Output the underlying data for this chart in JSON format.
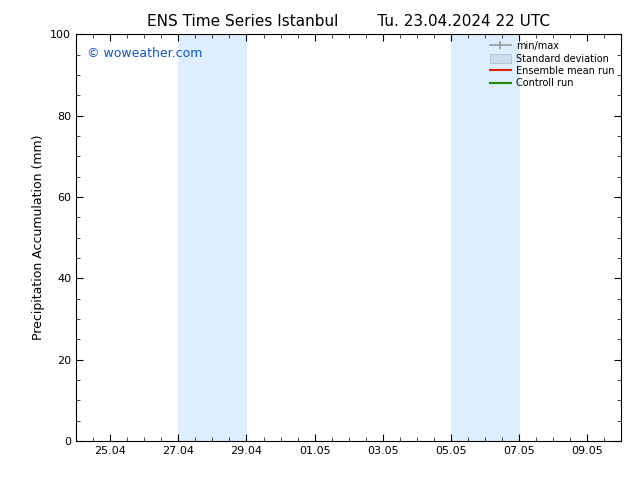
{
  "title1": "ENS Time Series Istanbul",
  "title2": "Tu. 23.04.2024 22 UTC",
  "ylabel": "Precipitation Accumulation (mm)",
  "ylim": [
    0,
    100
  ],
  "yticks": [
    0,
    20,
    40,
    60,
    80,
    100
  ],
  "watermark": "© woweather.com",
  "watermark_color": "#1155cc",
  "background_color": "#ffffff",
  "shaded_bands_days": [
    {
      "x_start": 3,
      "x_end": 5,
      "color": "#ddeeff"
    },
    {
      "x_start": 11,
      "x_end": 13,
      "color": "#ddeeff"
    }
  ],
  "tick_positions_days": [
    1,
    3,
    5,
    7,
    9,
    11,
    13,
    15
  ],
  "xtick_labels": [
    "25.04",
    "27.04",
    "29.04",
    "01.05",
    "03.05",
    "05.05",
    "07.05",
    "09.05"
  ],
  "x_min": 0,
  "x_max": 16,
  "legend_labels": [
    "min/max",
    "Standard deviation",
    "Ensemble mean run",
    "Controll run"
  ],
  "title_fontsize": 11,
  "label_fontsize": 9,
  "tick_fontsize": 8,
  "watermark_fontsize": 9
}
